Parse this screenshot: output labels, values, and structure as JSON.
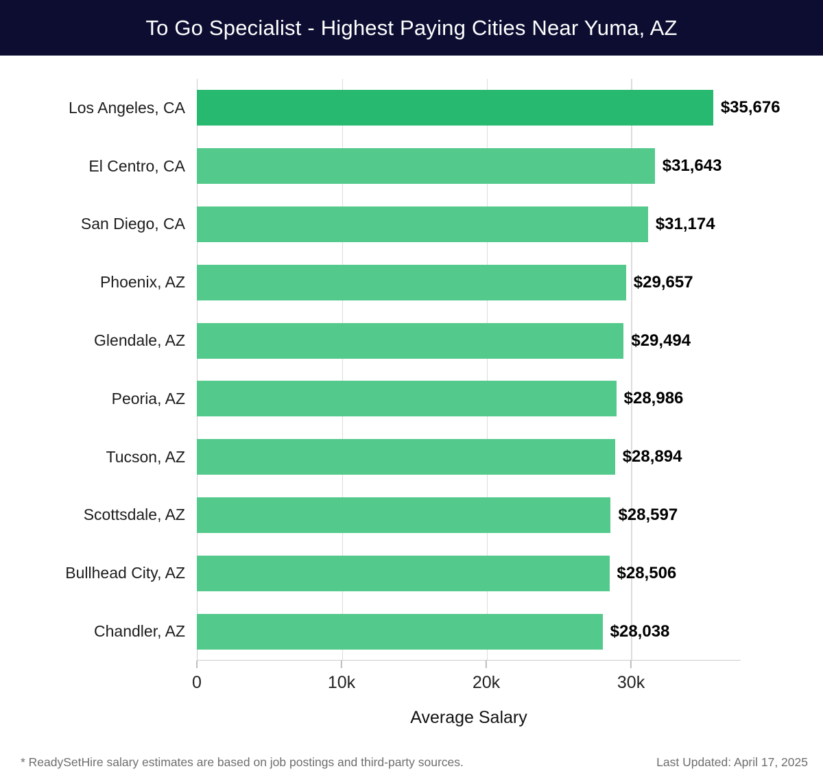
{
  "header": {
    "title": "To Go Specialist - Highest Paying Cities Near Yuma, AZ"
  },
  "chart_data": {
    "type": "bar",
    "orientation": "horizontal",
    "title": "To Go Specialist - Highest Paying Cities Near Yuma, AZ",
    "categories": [
      "Los Angeles, CA",
      "El Centro, CA",
      "San Diego, CA",
      "Phoenix, AZ",
      "Glendale, AZ",
      "Peoria, AZ",
      "Tucson, AZ",
      "Scottsdale, AZ",
      "Bullhead City, AZ",
      "Chandler, AZ"
    ],
    "values": [
      35676,
      31643,
      31174,
      29657,
      29494,
      28986,
      28894,
      28597,
      28506,
      28038
    ],
    "value_labels": [
      "$35,676",
      "$31,643",
      "$31,174",
      "$29,657",
      "$29,494",
      "$28,986",
      "$28,894",
      "$28,597",
      "$28,506",
      "$28,038"
    ],
    "xlabel": "Average Salary",
    "ylabel": "",
    "x_ticks": [
      {
        "value": 0,
        "label": "0"
      },
      {
        "value": 10000,
        "label": "10k"
      },
      {
        "value": 20000,
        "label": "20k"
      },
      {
        "value": 30000,
        "label": "30k"
      }
    ],
    "xlim": [
      0,
      37580
    ],
    "grid": true,
    "legend_position": "none",
    "colors": {
      "highlight_bar": "#26b96f",
      "bar": "#53c98b",
      "gridline": "#dcdcdc",
      "axis_line": "#cccccc",
      "header_bg": "#0c0d31",
      "header_text": "#ffffff",
      "category_text": "#1c1c1c",
      "value_text": "#000000",
      "tick_text": "#222222",
      "footer_text": "#6e6e6e"
    }
  },
  "footer": {
    "note": "* ReadySetHire salary estimates are based on job postings and third-party sources.",
    "updated": "Last Updated: April 17, 2025"
  }
}
